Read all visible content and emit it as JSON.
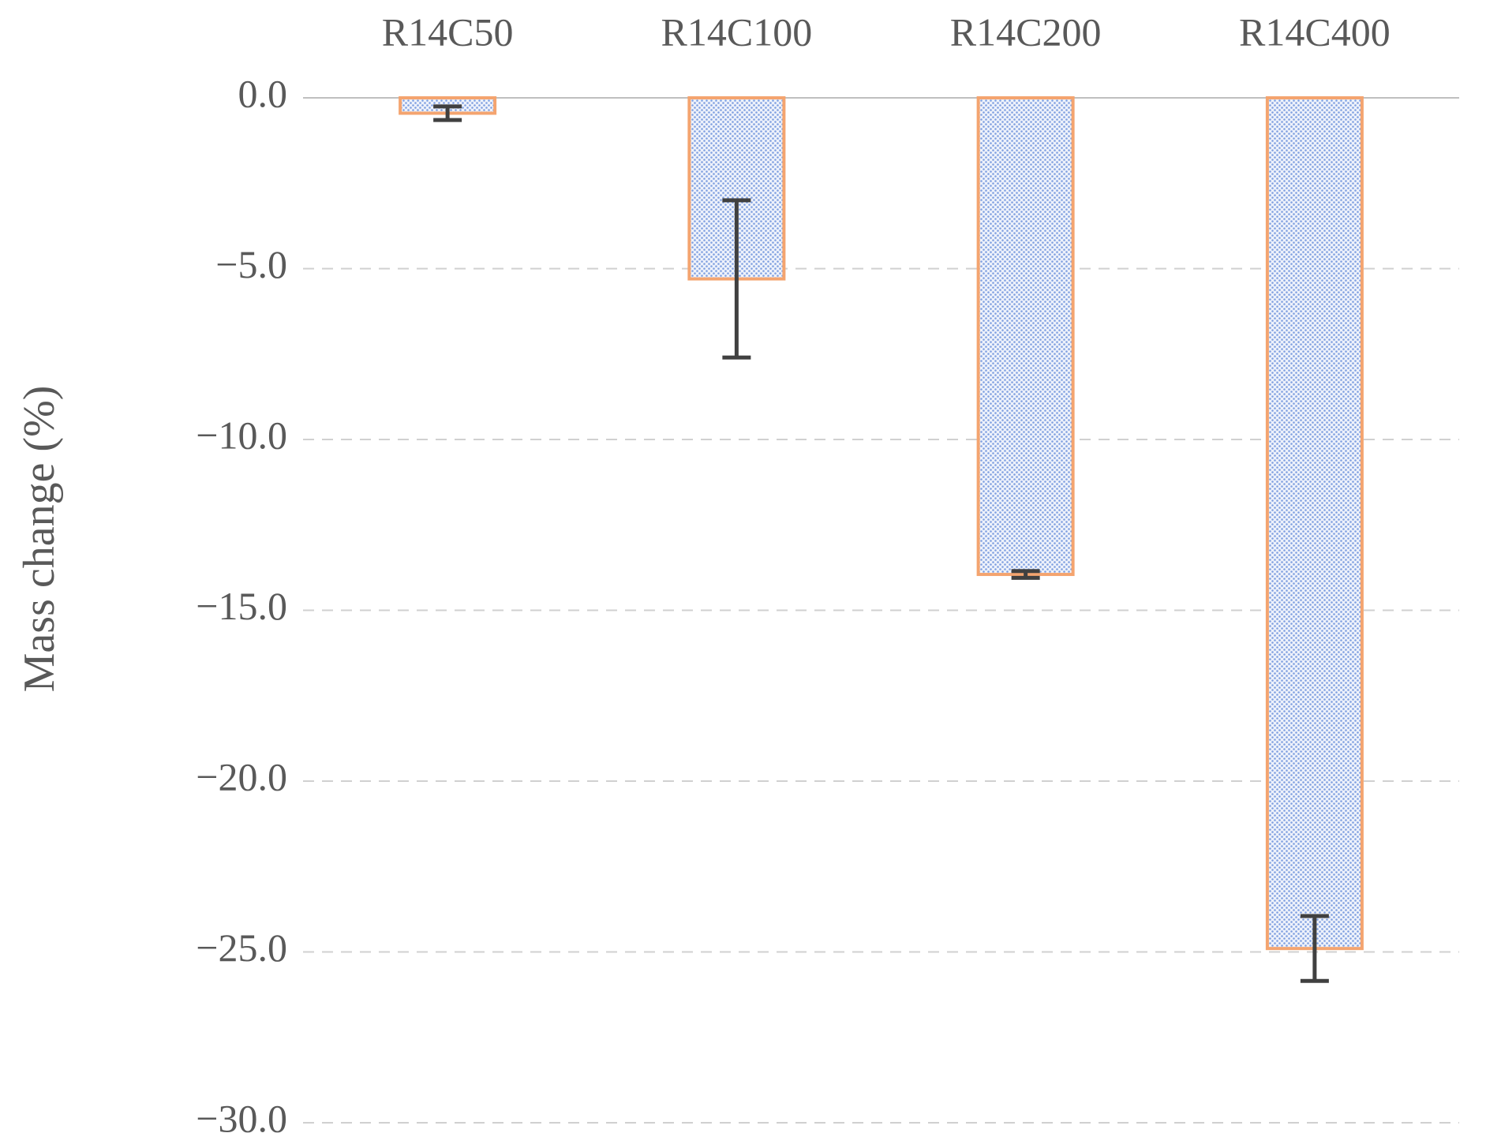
{
  "chart_data": {
    "type": "bar",
    "y_label": "Mass change (%)",
    "categories": [
      "R14C50",
      "R14C100",
      "R14C200",
      "R14C400"
    ],
    "values": [
      -0.45,
      -5.3,
      -13.95,
      -24.9
    ],
    "errors": [
      0.2,
      2.3,
      0.1,
      0.95
    ],
    "color": "#7f9fe0",
    "edge_color": "#f4a46f",
    "error_color": "#404040",
    "ylim": [
      -30,
      0
    ],
    "yticks": [
      {
        "value": -30,
        "label": "−30.0"
      },
      {
        "value": -25,
        "label": "−25.0"
      },
      {
        "value": -20,
        "label": "−20.0"
      },
      {
        "value": -15,
        "label": "−15.0"
      },
      {
        "value": -10,
        "label": "−10.0"
      },
      {
        "value": -5,
        "label": "−5.0"
      },
      {
        "value": 0,
        "label": "0.0"
      }
    ],
    "grid": true
  }
}
